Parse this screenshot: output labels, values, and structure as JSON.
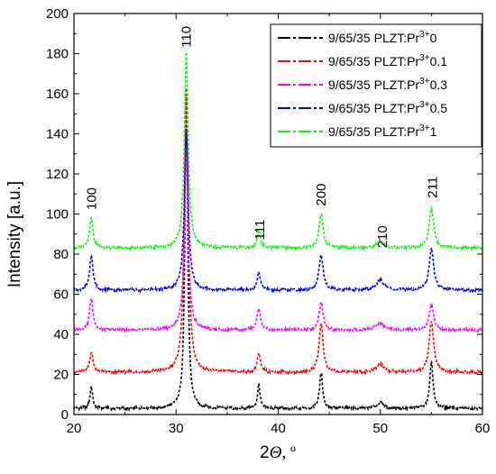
{
  "chart_data": {
    "type": "line",
    "xlabel_base": "2",
    "xlabel_var": "Θ",
    "xlabel_unit": ", º",
    "ylabel": "Intensity [a.u.]",
    "xlim": [
      20,
      60
    ],
    "ylim": [
      0,
      200
    ],
    "x_ticks": [
      "20",
      "30",
      "40",
      "50",
      "60"
    ],
    "y_ticks": [
      "0",
      "20",
      "40",
      "60",
      "80",
      "100",
      "120",
      "140",
      "160",
      "180",
      "200"
    ],
    "grid": false,
    "legend_position": "top-right",
    "peak_labels": [
      {
        "text": "100",
        "x": 21.7,
        "y": 102
      },
      {
        "text": "110",
        "x": 31.0,
        "y": 183
      },
      {
        "text": "111",
        "x": 38.2,
        "y": 87
      },
      {
        "text": "200",
        "x": 44.2,
        "y": 104
      },
      {
        "text": "210",
        "x": 50.2,
        "y": 83
      },
      {
        "text": "211",
        "x": 55.1,
        "y": 108
      }
    ],
    "peaks_x": [
      21.7,
      31.0,
      38.1,
      44.2,
      50.0,
      55.0
    ],
    "series": [
      {
        "name_prefix": "9/65/35 PLZT:Pr",
        "name_sup": "3+",
        "name_suffix": "0",
        "color": "#000000",
        "baseline": 3,
        "heights": [
          11,
          155,
          12,
          18,
          3,
          23
        ]
      },
      {
        "name_prefix": "9/65/35 PLZT:Pr",
        "name_sup": "3+",
        "name_suffix": "0.1",
        "color": "#ff0000",
        "baseline": 21,
        "heights": [
          10,
          142,
          9,
          24,
          4,
          26
        ]
      },
      {
        "name_prefix": "9/65/35 PLZT:Pr",
        "name_sup": "3+",
        "name_suffix": "0.3",
        "color": "#ff00ff",
        "baseline": 42,
        "heights": [
          16,
          88,
          11,
          14,
          4,
          13
        ]
      },
      {
        "name_prefix": "9/65/35 PLZT:Pr",
        "name_sup": "3+",
        "name_suffix": "0.5",
        "color": "#0000ff",
        "baseline": 62,
        "heights": [
          17,
          80,
          9,
          18,
          5,
          21
        ]
      },
      {
        "name_prefix": "9/65/35 PLZT:Pr",
        "name_sup": "3+",
        "name_suffix": "1",
        "color": "#00ff00",
        "baseline": 83,
        "heights": [
          15,
          97,
          9,
          17,
          3,
          20
        ]
      }
    ]
  }
}
